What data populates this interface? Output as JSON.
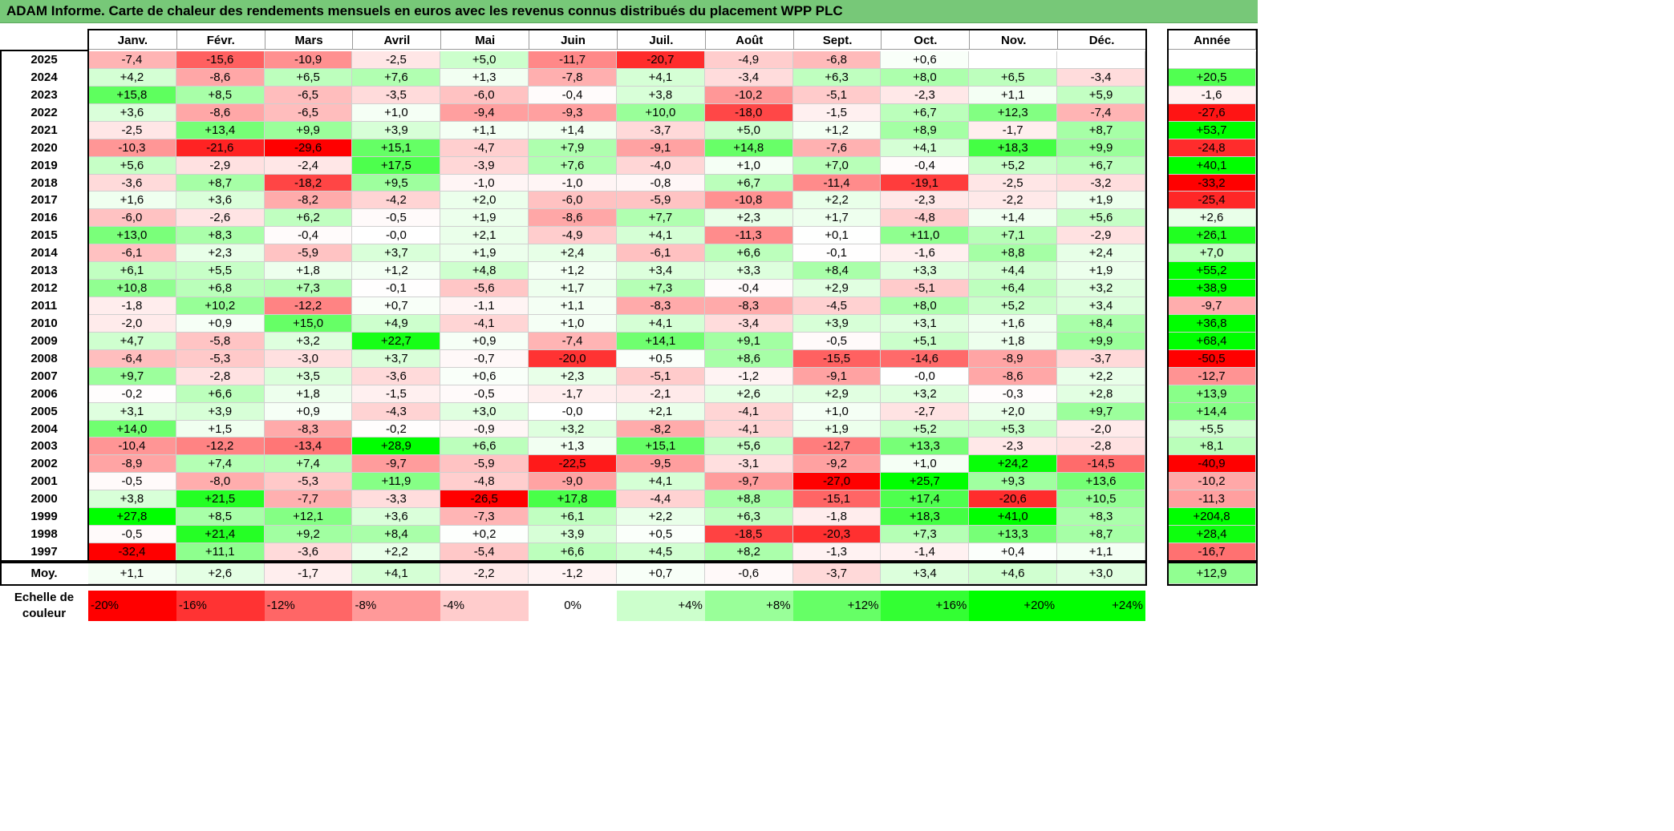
{
  "title": "ADAM Informe. Carte de chaleur des rendements mensuels en euros avec les revenus connus distribués du placement WPP PLC",
  "months": [
    "Janv.",
    "Févr.",
    "Mars",
    "Avril",
    "Mai",
    "Juin",
    "Juil.",
    "Août",
    "Sept.",
    "Oct.",
    "Nov.",
    "Déc."
  ],
  "year_header": "Année",
  "avg_label": "Moy.",
  "scale_label": "Echelle de couleur",
  "chart_data": {
    "type": "heatmap",
    "title": "ADAM Informe. Carte de chaleur des rendements mensuels en euros avec les revenus connus distribués du placement WPP PLC",
    "columns": [
      "Janv.",
      "Févr.",
      "Mars",
      "Avril",
      "Mai",
      "Juin",
      "Juil.",
      "Août",
      "Sept.",
      "Oct.",
      "Nov.",
      "Déc."
    ],
    "rows": [
      {
        "year": "2025",
        "values": [
          "-7,4",
          "-15,6",
          "-10,9",
          "-2,5",
          "+5,0",
          "-11,7",
          "-20,7",
          "-4,9",
          "-6,8",
          "+0,6",
          "",
          ""
        ],
        "annual": ""
      },
      {
        "year": "2024",
        "values": [
          "+4,2",
          "-8,6",
          "+6,5",
          "+7,6",
          "+1,3",
          "-7,8",
          "+4,1",
          "-3,4",
          "+6,3",
          "+8,0",
          "+6,5",
          "-3,4"
        ],
        "annual": "+20,5"
      },
      {
        "year": "2023",
        "values": [
          "+15,8",
          "+8,5",
          "-6,5",
          "-3,5",
          "-6,0",
          "-0,4",
          "+3,8",
          "-10,2",
          "-5,1",
          "-2,3",
          "+1,1",
          "+5,9"
        ],
        "annual": "-1,6"
      },
      {
        "year": "2022",
        "values": [
          "+3,6",
          "-8,6",
          "-6,5",
          "+1,0",
          "-9,4",
          "-9,3",
          "+10,0",
          "-18,0",
          "-1,5",
          "+6,7",
          "+12,3",
          "-7,4"
        ],
        "annual": "-27,6"
      },
      {
        "year": "2021",
        "values": [
          "-2,5",
          "+13,4",
          "+9,9",
          "+3,9",
          "+1,1",
          "+1,4",
          "-3,7",
          "+5,0",
          "+1,2",
          "+8,9",
          "-1,7",
          "+8,7"
        ],
        "annual": "+53,7"
      },
      {
        "year": "2020",
        "values": [
          "-10,3",
          "-21,6",
          "-29,6",
          "+15,1",
          "-4,7",
          "+7,9",
          "-9,1",
          "+14,8",
          "-7,6",
          "+4,1",
          "+18,3",
          "+9,9"
        ],
        "annual": "-24,8"
      },
      {
        "year": "2019",
        "values": [
          "+5,6",
          "-2,9",
          "-2,4",
          "+17,5",
          "-3,9",
          "+7,6",
          "-4,0",
          "+1,0",
          "+7,0",
          "-0,4",
          "+5,2",
          "+6,7"
        ],
        "annual": "+40,1"
      },
      {
        "year": "2018",
        "values": [
          "-3,6",
          "+8,7",
          "-18,2",
          "+9,5",
          "-1,0",
          "-1,0",
          "-0,8",
          "+6,7",
          "-11,4",
          "-19,1",
          "-2,5",
          "-3,2"
        ],
        "annual": "-33,2"
      },
      {
        "year": "2017",
        "values": [
          "+1,6",
          "+3,6",
          "-8,2",
          "-4,2",
          "+2,0",
          "-6,0",
          "-5,9",
          "-10,8",
          "+2,2",
          "-2,3",
          "-2,2",
          "+1,9"
        ],
        "annual": "-25,4"
      },
      {
        "year": "2016",
        "values": [
          "-6,0",
          "-2,6",
          "+6,2",
          "-0,5",
          "+1,9",
          "-8,6",
          "+7,7",
          "+2,3",
          "+1,7",
          "-4,8",
          "+1,4",
          "+5,6"
        ],
        "annual": "+2,6"
      },
      {
        "year": "2015",
        "values": [
          "+13,0",
          "+8,3",
          "-0,4",
          "-0,0",
          "+2,1",
          "-4,9",
          "+4,1",
          "-11,3",
          "+0,1",
          "+11,0",
          "+7,1",
          "-2,9"
        ],
        "annual": "+26,1"
      },
      {
        "year": "2014",
        "values": [
          "-6,1",
          "+2,3",
          "-5,9",
          "+3,7",
          "+1,9",
          "+2,4",
          "-6,1",
          "+6,6",
          "-0,1",
          "-1,6",
          "+8,8",
          "+2,4"
        ],
        "annual": "+7,0"
      },
      {
        "year": "2013",
        "values": [
          "+6,1",
          "+5,5",
          "+1,8",
          "+1,2",
          "+4,8",
          "+1,2",
          "+3,4",
          "+3,3",
          "+8,4",
          "+3,3",
          "+4,4",
          "+1,9"
        ],
        "annual": "+55,2"
      },
      {
        "year": "2012",
        "values": [
          "+10,8",
          "+6,8",
          "+7,3",
          "-0,1",
          "-5,6",
          "+1,7",
          "+7,3",
          "-0,4",
          "+2,9",
          "-5,1",
          "+6,4",
          "+3,2"
        ],
        "annual": "+38,9"
      },
      {
        "year": "2011",
        "values": [
          "-1,8",
          "+10,2",
          "-12,2",
          "+0,7",
          "-1,1",
          "+1,1",
          "-8,3",
          "-8,3",
          "-4,5",
          "+8,0",
          "+5,2",
          "+3,4"
        ],
        "annual": "-9,7"
      },
      {
        "year": "2010",
        "values": [
          "-2,0",
          "+0,9",
          "+15,0",
          "+4,9",
          "-4,1",
          "+1,0",
          "+4,1",
          "-3,4",
          "+3,9",
          "+3,1",
          "+1,6",
          "+8,4"
        ],
        "annual": "+36,8"
      },
      {
        "year": "2009",
        "values": [
          "+4,7",
          "-5,8",
          "+3,2",
          "+22,7",
          "+0,9",
          "-7,4",
          "+14,1",
          "+9,1",
          "-0,5",
          "+5,1",
          "+1,8",
          "+9,9"
        ],
        "annual": "+68,4"
      },
      {
        "year": "2008",
        "values": [
          "-6,4",
          "-5,3",
          "-3,0",
          "+3,7",
          "-0,7",
          "-20,0",
          "+0,5",
          "+8,6",
          "-15,5",
          "-14,6",
          "-8,9",
          "-3,7"
        ],
        "annual": "-50,5"
      },
      {
        "year": "2007",
        "values": [
          "+9,7",
          "-2,8",
          "+3,5",
          "-3,6",
          "+0,6",
          "+2,3",
          "-5,1",
          "-1,2",
          "-9,1",
          "-0,0",
          "-8,6",
          "+2,2"
        ],
        "annual": "-12,7"
      },
      {
        "year": "2006",
        "values": [
          "-0,2",
          "+6,6",
          "+1,8",
          "-1,5",
          "-0,5",
          "-1,7",
          "-2,1",
          "+2,6",
          "+2,9",
          "+3,2",
          "-0,3",
          "+2,8"
        ],
        "annual": "+13,9"
      },
      {
        "year": "2005",
        "values": [
          "+3,1",
          "+3,9",
          "+0,9",
          "-4,3",
          "+3,0",
          "-0,0",
          "+2,1",
          "-4,1",
          "+1,0",
          "-2,7",
          "+2,0",
          "+9,7"
        ],
        "annual": "+14,4"
      },
      {
        "year": "2004",
        "values": [
          "+14,0",
          "+1,5",
          "-8,3",
          "-0,2",
          "-0,9",
          "+3,2",
          "-8,2",
          "-4,1",
          "+1,9",
          "+5,2",
          "+5,3",
          "-2,0"
        ],
        "annual": "+5,5"
      },
      {
        "year": "2003",
        "values": [
          "-10,4",
          "-12,2",
          "-13,4",
          "+28,9",
          "+6,6",
          "+1,3",
          "+15,1",
          "+5,6",
          "-12,7",
          "+13,3",
          "-2,3",
          "-2,8"
        ],
        "annual": "+8,1"
      },
      {
        "year": "2002",
        "values": [
          "-8,9",
          "+7,4",
          "+7,4",
          "-9,7",
          "-5,9",
          "-22,5",
          "-9,5",
          "-3,1",
          "-9,2",
          "+1,0",
          "+24,2",
          "-14,5"
        ],
        "annual": "-40,9"
      },
      {
        "year": "2001",
        "values": [
          "-0,5",
          "-8,0",
          "-5,3",
          "+11,9",
          "-4,8",
          "-9,0",
          "+4,1",
          "-9,7",
          "-27,0",
          "+25,7",
          "+9,3",
          "+13,6"
        ],
        "annual": "-10,2"
      },
      {
        "year": "2000",
        "values": [
          "+3,8",
          "+21,5",
          "-7,7",
          "-3,3",
          "-26,5",
          "+17,8",
          "-4,4",
          "+8,8",
          "-15,1",
          "+17,4",
          "-20,6",
          "+10,5"
        ],
        "annual": "-11,3"
      },
      {
        "year": "1999",
        "values": [
          "+27,8",
          "+8,5",
          "+12,1",
          "+3,6",
          "-7,3",
          "+6,1",
          "+2,2",
          "+6,3",
          "-1,8",
          "+18,3",
          "+41,0",
          "+8,3"
        ],
        "annual": "+204,8"
      },
      {
        "year": "1998",
        "values": [
          "-0,5",
          "+21,4",
          "+9,2",
          "+8,4",
          "+0,2",
          "+3,9",
          "+0,5",
          "-18,5",
          "-20,3",
          "+7,3",
          "+13,3",
          "+8,7"
        ],
        "annual": "+28,4"
      },
      {
        "year": "1997",
        "values": [
          "-32,4",
          "+11,1",
          "-3,6",
          "+2,2",
          "-5,4",
          "+6,6",
          "+4,5",
          "+8,2",
          "-1,3",
          "-1,4",
          "+0,4",
          "+1,1"
        ],
        "annual": "-16,7"
      }
    ],
    "average": {
      "values": [
        "+1,1",
        "+2,6",
        "-1,7",
        "+4,1",
        "-2,2",
        "-1,2",
        "+0,7",
        "-0,6",
        "-3,7",
        "+3,4",
        "+4,6",
        "+3,0"
      ],
      "annual": "+12,9"
    },
    "color_scale": {
      "labels": [
        "-20%",
        "-16%",
        "-12%",
        "-8%",
        "-4%",
        "0%",
        "+4%",
        "+8%",
        "+12%",
        "+16%",
        "+20%",
        "+24%"
      ],
      "values": [
        -20,
        -16,
        -12,
        -8,
        -4,
        0,
        4,
        8,
        12,
        16,
        20,
        24
      ],
      "negative_color": "#ff0000",
      "neutral_color": "#ffffff",
      "positive_color": "#00ff00"
    }
  }
}
